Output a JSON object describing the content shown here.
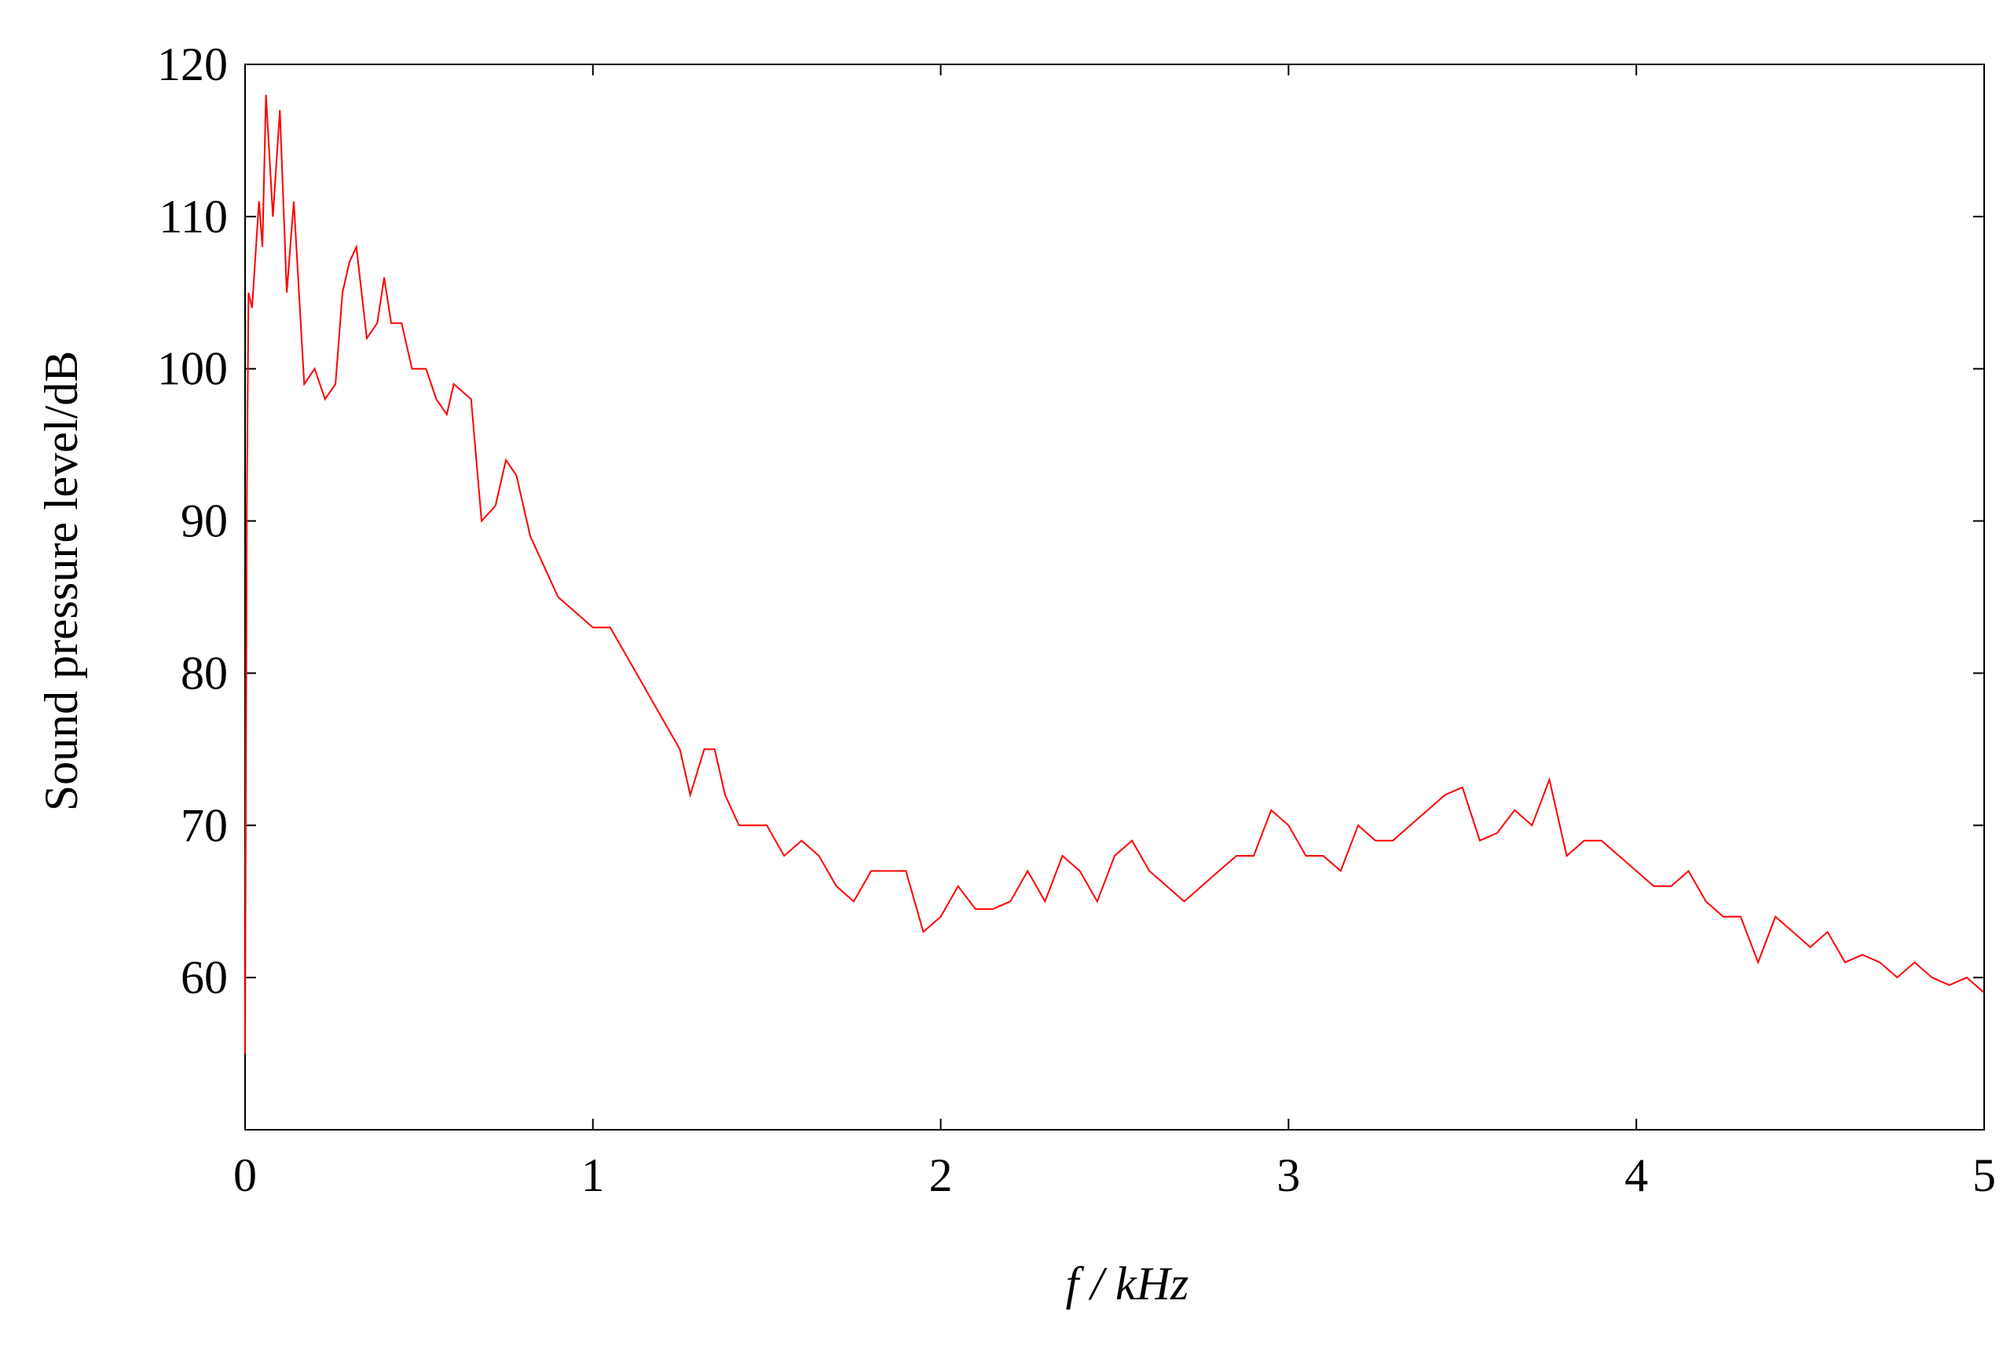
{
  "chart_data": {
    "type": "line",
    "xlabel": "f / kHz",
    "ylabel": "Sound pressure level/dB",
    "x": [
      0,
      0.005,
      0.01,
      0.02,
      0.04,
      0.05,
      0.06,
      0.08,
      0.1,
      0.12,
      0.14,
      0.17,
      0.2,
      0.23,
      0.26,
      0.28,
      0.3,
      0.32,
      0.35,
      0.38,
      0.4,
      0.42,
      0.45,
      0.48,
      0.52,
      0.55,
      0.58,
      0.6,
      0.65,
      0.68,
      0.72,
      0.75,
      0.78,
      0.82,
      0.86,
      0.9,
      0.95,
      1.0,
      1.05,
      1.1,
      1.15,
      1.2,
      1.25,
      1.28,
      1.32,
      1.35,
      1.38,
      1.42,
      1.5,
      1.55,
      1.6,
      1.65,
      1.7,
      1.75,
      1.8,
      1.85,
      1.9,
      1.95,
      2.0,
      2.05,
      2.1,
      2.15,
      2.2,
      2.25,
      2.3,
      2.35,
      2.4,
      2.45,
      2.5,
      2.55,
      2.6,
      2.65,
      2.7,
      2.75,
      2.8,
      2.85,
      2.9,
      2.95,
      3.0,
      3.05,
      3.1,
      3.15,
      3.2,
      3.25,
      3.3,
      3.35,
      3.4,
      3.45,
      3.5,
      3.55,
      3.6,
      3.65,
      3.7,
      3.75,
      3.8,
      3.85,
      3.9,
      3.95,
      4.0,
      4.05,
      4.1,
      4.15,
      4.2,
      4.25,
      4.3,
      4.35,
      4.4,
      4.45,
      4.5,
      4.55,
      4.6,
      4.65,
      4.7,
      4.75,
      4.8,
      4.85,
      4.9,
      4.95,
      5.0
    ],
    "series": [
      {
        "color": "#ff0000",
        "values": [
          55,
          91,
          105,
          104,
          111,
          108,
          118,
          110,
          117,
          105,
          111,
          99,
          100,
          98,
          99,
          105,
          107,
          108,
          102,
          103,
          106,
          103,
          103,
          100,
          100,
          98,
          97,
          99,
          98,
          90,
          91,
          94,
          93,
          89,
          87,
          85,
          84,
          83,
          83,
          81,
          79,
          77,
          75,
          72,
          75,
          75,
          72,
          70,
          70,
          68,
          69,
          68,
          66,
          65,
          67,
          67,
          67,
          63,
          64,
          66,
          64.5,
          64.5,
          65,
          67,
          65,
          68,
          67,
          65,
          68,
          69,
          67,
          66,
          65,
          66,
          67,
          68,
          68,
          71,
          70,
          68,
          68,
          67,
          70,
          69,
          69,
          70,
          71,
          72,
          72.5,
          69,
          69.5,
          71,
          70,
          73,
          68,
          69,
          69,
          68,
          67,
          66,
          66,
          67,
          65,
          64,
          64,
          61,
          64,
          63,
          62,
          63,
          61,
          61.5,
          61,
          60,
          61,
          60,
          59.5,
          60,
          59
        ]
      }
    ],
    "xlim": [
      0,
      5
    ],
    "xticks": [
      0,
      1,
      2,
      3,
      4,
      5
    ],
    "ylim": [
      50,
      120
    ],
    "yticks": [
      60,
      70,
      80,
      90,
      100,
      110,
      120
    ]
  }
}
